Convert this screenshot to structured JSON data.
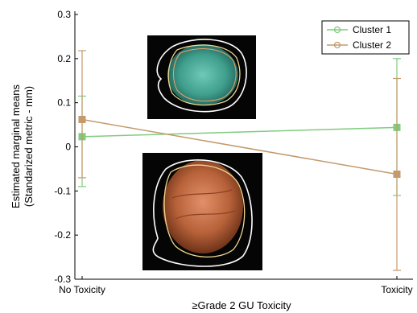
{
  "chart_data": {
    "type": "line",
    "xlabel": "≥Grade 2 GU Toxicity",
    "ylabel_line1": "Estimated marginal means",
    "ylabel_line2": "(Standarized metric - mm)",
    "categories": [
      "No Toxicity",
      "Toxicity"
    ],
    "ylim": [
      -0.3,
      0.3
    ],
    "yticks": [
      -0.3,
      -0.2,
      -0.1,
      0,
      0.1,
      0.2,
      0.3
    ],
    "ytick_labels": [
      "-0.3",
      "-0.2",
      "-0.1",
      "0",
      "0.1",
      "0.2",
      "0.3"
    ],
    "grid": false,
    "legend_position": "top-right",
    "series": [
      {
        "name": "Cluster 1",
        "color": "#7fcc7f",
        "marker": "square",
        "values": [
          0.023,
          0.044
        ],
        "error_low": [
          -0.09,
          -0.11
        ],
        "error_high": [
          0.115,
          0.2
        ]
      },
      {
        "name": "Cluster 2",
        "color": "#c49a6c",
        "marker": "square",
        "values": [
          0.062,
          -0.062
        ],
        "error_low": [
          -0.07,
          -0.28
        ],
        "error_high": [
          0.218,
          0.155
        ]
      }
    ],
    "insets": [
      {
        "name": "cluster-1-contour-image",
        "fill": "#3f9e8c"
      },
      {
        "name": "cluster-2-contour-image",
        "fill": "#b8623a"
      }
    ]
  }
}
